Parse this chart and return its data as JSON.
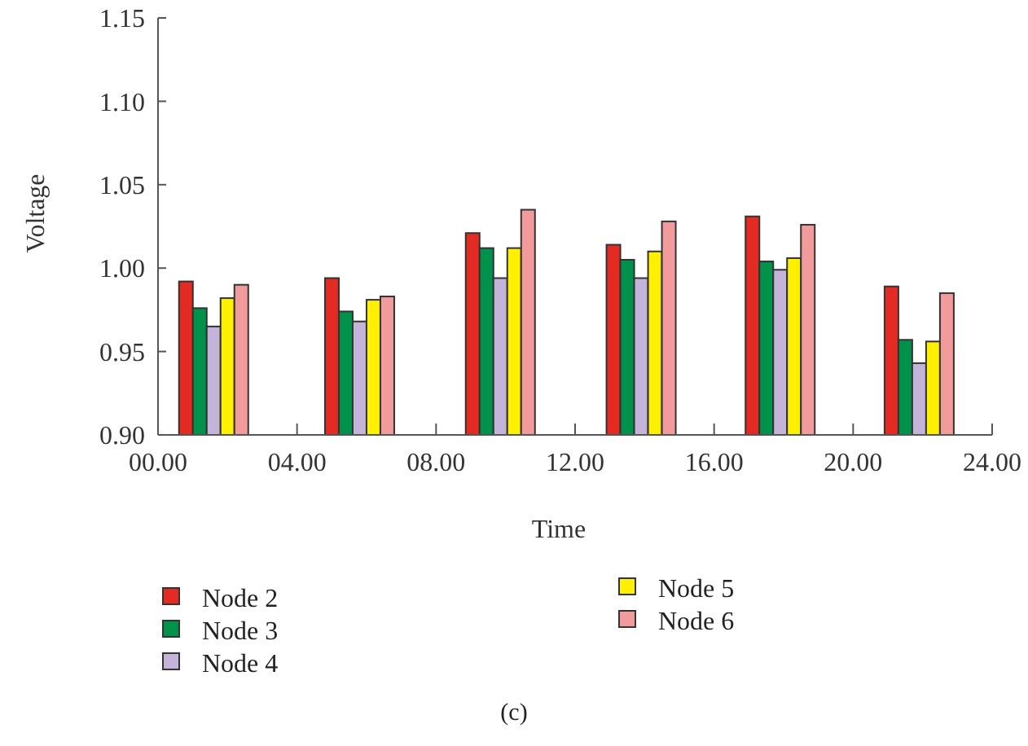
{
  "chart_data": {
    "type": "bar",
    "xlabel": "Time",
    "ylabel": "Voltage",
    "annotations": [
      "(c)"
    ],
    "x": [
      1.6,
      5.8,
      9.85,
      13.9,
      17.9,
      21.9
    ],
    "xlim": [
      0,
      24
    ],
    "xticks": [
      {
        "value": 0,
        "label": "00.00"
      },
      {
        "value": 4,
        "label": "04.00"
      },
      {
        "value": 8,
        "label": "08.00"
      },
      {
        "value": 12,
        "label": "12.00"
      },
      {
        "value": 16,
        "label": "16.00"
      },
      {
        "value": 20,
        "label": "20.00"
      },
      {
        "value": 24,
        "label": "24.00"
      }
    ],
    "ylim": [
      0.9,
      1.15
    ],
    "yticks": [
      {
        "value": 0.9,
        "label": "0.90"
      },
      {
        "value": 0.95,
        "label": "0.95"
      },
      {
        "value": 1.0,
        "label": "1.00"
      },
      {
        "value": 1.05,
        "label": "1.05"
      },
      {
        "value": 1.1,
        "label": "1.10"
      },
      {
        "value": 1.15,
        "label": "1.15"
      }
    ],
    "grid": false,
    "legend": "bottom",
    "series": [
      {
        "name": "Node 2",
        "color": "#e32b24",
        "values": [
          0.992,
          0.994,
          1.021,
          1.014,
          1.031,
          0.989
        ]
      },
      {
        "name": "Node 3",
        "color": "#00924a",
        "values": [
          0.976,
          0.974,
          1.012,
          1.005,
          1.004,
          0.957
        ]
      },
      {
        "name": "Node 4",
        "color": "#c4b4da",
        "values": [
          0.965,
          0.968,
          0.994,
          0.994,
          0.999,
          0.943
        ]
      },
      {
        "name": "Node 5",
        "color": "#fff000",
        "values": [
          0.982,
          0.981,
          1.012,
          1.01,
          1.006,
          0.956
        ]
      },
      {
        "name": "Node 6",
        "color": "#f29b9c",
        "values": [
          0.99,
          0.983,
          1.035,
          1.028,
          1.026,
          0.985
        ]
      }
    ]
  }
}
